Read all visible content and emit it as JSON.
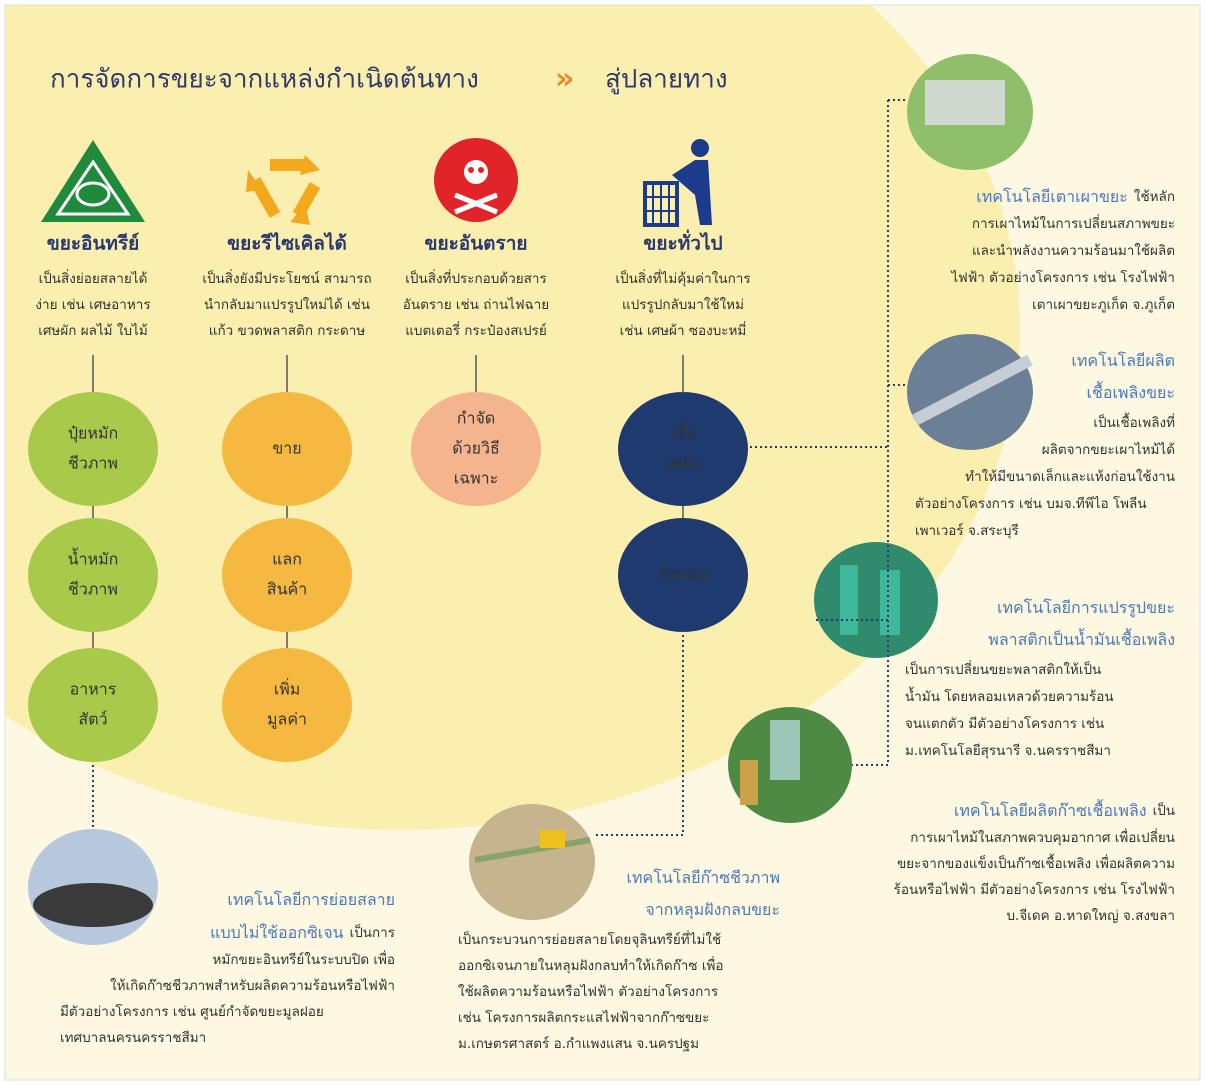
{
  "header": {
    "title": "การจัดการขยะจากแหล่งกำเนิดต้นทาง",
    "separator": "»",
    "title_end": "สู่ปลายทาง"
  },
  "categories": [
    {
      "name": "ขยะอินทรีย์",
      "description": [
        "เป็นสิ่งย่อยสลายได้",
        "ง่าย เช่น เศษอาหาร",
        "เศษผัก ผลไม้ ใบไม้"
      ],
      "nodes": [
        [
          "ปุ๋ยหมัก",
          "ชีวภาพ"
        ],
        [
          "น้ำหมัก",
          "ชีวภาพ"
        ],
        [
          "อาหาร",
          "สัตว์"
        ]
      ]
    },
    {
      "name": "ขยะรีไซเคิลได้",
      "description": [
        "เป็นสิ่งยังมีประโยชน์ สามารถ",
        "นำกลับมาแปรรูปใหม่ได้ เช่น",
        "แก้ว ขวดพลาสติก กระดาษ"
      ],
      "nodes": [
        [
          "ขาย"
        ],
        [
          "แลก",
          "สินค้า"
        ],
        [
          "เพิ่ม",
          "มูลค่า"
        ]
      ]
    },
    {
      "name": "ขยะอันตราย",
      "description": [
        "เป็นสิ่งที่ประกอบด้วยสาร",
        "อันตราย เช่น ถ่านไฟฉาย",
        "แบตเตอรี่ กระป๋องสเปรย์"
      ],
      "nodes": [
        [
          "กำจัด",
          "ด้วยวิธี",
          "เฉพาะ"
        ]
      ]
    },
    {
      "name": "ขยะทั่วไป",
      "description": [
        "เป็นสิ่งที่ไม่คุ้มค่าในการ",
        "แปรรูปกลับมาใช้ใหม่",
        "เช่น เศษผ้า ซองบะหมี่"
      ],
      "nodes": [
        [
          "เชื้อ",
          "เพลิง"
        ],
        [
          "ฝังกลบ"
        ]
      ]
    }
  ],
  "technologies": [
    {
      "title": [
        "เทคโนโลยีเตาเผาขยะ"
      ],
      "text": [
        "ใช้หลัก",
        "การเผาไหม้ในการเปลี่ยนสภาพขยะ",
        "และนำพลังงานความร้อนมาใช้ผลิต",
        "ไฟฟ้า ตัวอย่างโครงการ เช่น โรงไฟฟ้า",
        "เตาเผาขยะภูเก็ต จ.ภูเก็ต"
      ]
    },
    {
      "title": [
        "เทคโนโลยีผลิต",
        "เชื้อเพลิงขยะ"
      ],
      "text": [
        "เป็นเชื้อเพลิงที่",
        "ผลิตจากขยะเผาไหม้ได้",
        "ทำให้มีขนาดเล็กและแห้งก่อนใช้งาน",
        "ตัวอย่างโครงการ เช่น บมจ.ทีพีไอ โพลีน",
        "เพาเวอร์ จ.สระบุรี"
      ]
    },
    {
      "title": [
        "เทคโนโลยีการแปรรูปขยะ",
        "พลาสติกเป็นน้ำมันเชื้อเพลิง"
      ],
      "text": [
        "เป็นการเปลี่ยนขยะพลาสติกให้เป็น",
        "น้ำมัน  โดยหลอมเหลวด้วยความร้อน",
        "จนแตกตัว  มีตัวอย่างโครงการ  เช่น",
        "ม.เทคโนโลยีสุรนารี จ.นครราชสีมา"
      ]
    },
    {
      "title": [
        "เทคโนโลยีผลิตก๊าซเชื้อเพลิง"
      ],
      "text": [
        "เป็น",
        "การเผาไหม้ในสภาพควบคุมอากาศ เพื่อเปลี่ยน",
        "ขยะจากของแข็งเป็นก๊าซเชื้อเพลิง เพื่อผลิตความ",
        "ร้อนหรือไฟฟ้า มีตัวอย่างโครงการ เช่น โรงไฟฟ้า",
        "บ.จีเดค อ.หาดใหญ่ จ.สงขลา"
      ]
    },
    {
      "title": [
        "เทคโนโลยีก๊าซชีวภาพ",
        "จากหลุมฝังกลบขยะ"
      ],
      "text": [
        "เป็นกระบวนการย่อยสลายโดยจุลินทรีย์ที่ไม่ใช้",
        "ออกซิเจนภายในหลุมฝังกลบทำให้เกิดก๊าซ เพื่อ",
        "ใช้ผลิตความร้อนหรือไฟฟ้า ตัวอย่างโครงการ",
        "เช่น โครงการผลิตกระแสไฟฟ้าจากก๊าซขยะ",
        "ม.เกษตรศาสตร์ อ.กำแพงแสน จ.นครปฐม"
      ]
    },
    {
      "title": [
        "เทคโนโลยีการย่อยสลาย",
        "แบบไม่ใช้ออกซิเจน"
      ],
      "text": [
        "เป็นการ",
        "หมักขยะอินทรีย์ในระบบปิด เพื่อ",
        "ให้เกิดก๊าซชีวภาพสำหรับผลิตความร้อนหรือไฟฟ้า",
        "มีตัวอย่างโครงการ เช่น ศูนย์กำจัดขยะมูลฝอย",
        "เทศบาลนครนครราชสีมา"
      ]
    }
  ]
}
